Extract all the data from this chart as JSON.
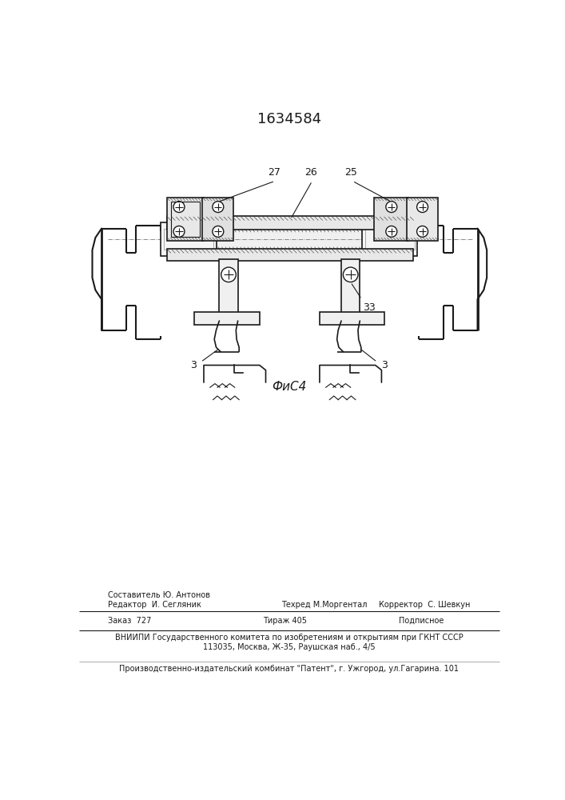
{
  "patent_number": "1634584",
  "fig_label": "ФиС4",
  "footer_line1_left": "Редактор  И. Сегляник",
  "footer_line1_mid_top": "Составитель Ю. Антонов",
  "footer_line1_mid_bot": "Техред М.Моргентал",
  "footer_line1_right": "Корректор  С. Шевкун",
  "footer_line2_left": "Заказ  727",
  "footer_line2_mid": "Тираж 405",
  "footer_line2_right": "Подписное",
  "footer_line3": "ВНИИПИ Государственного комитета по изобретениям и открытиям при ГКНТ СССР",
  "footer_line4": "113035, Москва, Ж-35, Раушская наб., 4/5",
  "footer_line5": "Производственно-издательский комбинат \"Патент\", г. Ужгород, ул.Гагарина. 101",
  "bg_color": "#ffffff",
  "line_color": "#1a1a1a",
  "text_color": "#1a1a1a"
}
